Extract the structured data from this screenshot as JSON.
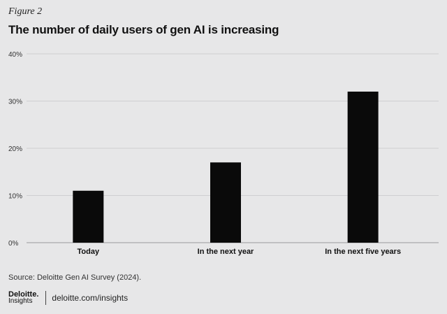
{
  "figure_label": "Figure 2",
  "chart_data": {
    "type": "bar",
    "title": "The number of daily users of gen AI is increasing",
    "categories": [
      "Today",
      "In the next year",
      "In the next five years"
    ],
    "values": [
      11,
      17,
      32
    ],
    "ylim": [
      0,
      40
    ],
    "yticks": [
      0,
      10,
      20,
      30,
      40
    ],
    "ytick_labels": [
      "0%",
      "10%",
      "20%",
      "30%",
      "40%"
    ],
    "grid": true,
    "bar_color": "#0a0a0a",
    "grid_color": "#cfcfd1",
    "xlabel": "",
    "ylabel": ""
  },
  "source": "Source: Deloitte Gen AI Survey (2024).",
  "brand": {
    "logo_top": "Deloitte",
    "logo_dot": ".",
    "logo_bottom": "Insights",
    "url": "deloitte.com/insights"
  }
}
